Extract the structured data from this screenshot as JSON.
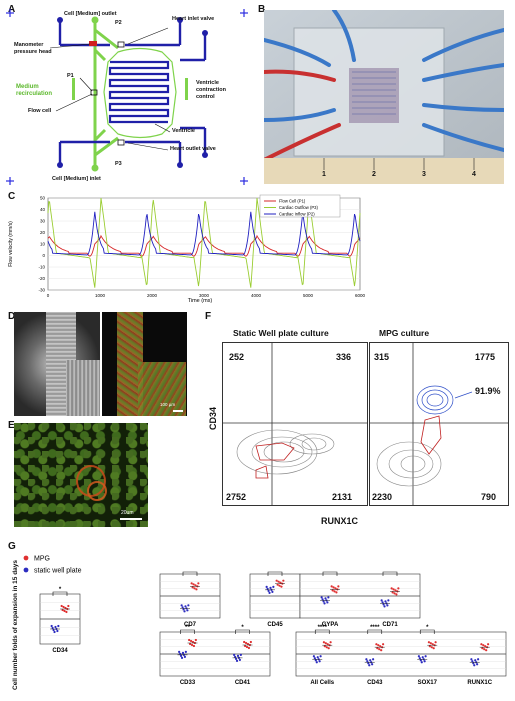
{
  "panels": {
    "A": "A",
    "B": "B",
    "C": "C",
    "D": "D",
    "E": "E",
    "F": "F",
    "G": "G"
  },
  "panelA": {
    "cell_outlet": "Cell [Medium] outlet",
    "p2": "P2",
    "heart_inlet": "Heart inlet valve",
    "manometer": "Manometer",
    "pressure_head": "pressure head",
    "p1": "P1",
    "medium": "Medium",
    "recirculation": "recirculation",
    "ventricle_contraction": "Ventricle",
    "ventricle_contraction2": "contraction",
    "ventricle_contraction3": "control",
    "flow_cell": "Flow cell",
    "ventricle": "Ventricle",
    "p3": "P3",
    "cell_inlet": "Cell [Medium] inlet",
    "heart_outlet": "Heart outlet valve"
  },
  "panelB": {
    "ruler_ticks": [
      "1",
      "2",
      "3",
      "4"
    ]
  },
  "panelC": {
    "chart_data": {
      "type": "line",
      "xlabel": "Time (ms)",
      "ylabel": "Flow velocity (mm/s)",
      "xlim": [
        0,
        6000
      ],
      "ylim": [
        -30,
        50
      ],
      "xticks": [
        "0",
        "1000",
        "2000",
        "3000",
        "4000",
        "5000",
        "6000"
      ],
      "yticks": [
        "50",
        "40",
        "30",
        "20",
        "10",
        "0",
        "-10",
        "-20",
        "-30"
      ],
      "legend": [
        "Flow Cell (P1)",
        "Cardiac Outflow (P3)",
        "Cardiac Inflow (P2)"
      ],
      "series_colors": [
        "#d62728",
        "#9acd32",
        "#2020c0"
      ],
      "period_ms": 1000
    }
  },
  "panelD": {
    "scale": "100 µm"
  },
  "panelE": {
    "scale": "20um"
  },
  "panelF": {
    "static_title": "Static Well plate culture",
    "mpg_title": "MPG culture",
    "ylabel": "CD34",
    "xlabel": "RUNX1C",
    "static_q": [
      "252",
      "336",
      "2752",
      "2131"
    ],
    "mpg_q": [
      "315",
      "1775",
      "2230",
      "790"
    ],
    "mpg_pct": "91.9%"
  },
  "panelG": {
    "ylabel": "Cell number folds of expansion in 15 days",
    "legend": [
      "MPG",
      "static well plate"
    ],
    "colors": {
      "mpg": "#e03030",
      "static": "#2c2cc0"
    },
    "groups": [
      {
        "labels": [
          "CD34"
        ],
        "sig": [
          "*"
        ]
      },
      {
        "labels": [
          "CD7"
        ],
        "sig": [
          "***"
        ]
      },
      {
        "labels": [
          "CD45"
        ],
        "sig": [
          "***"
        ]
      },
      {
        "labels": [
          "GYPA",
          "CD71"
        ],
        "sig": [
          "***",
          "***"
        ]
      },
      {
        "labels": [
          "CD33",
          "CD41"
        ],
        "sig": [
          "**",
          "*"
        ]
      },
      {
        "labels": [
          "All Cells",
          "CD43",
          "SOX17",
          "RUNX1C"
        ],
        "sig": [
          "****",
          "****",
          "*",
          ""
        ]
      }
    ]
  }
}
